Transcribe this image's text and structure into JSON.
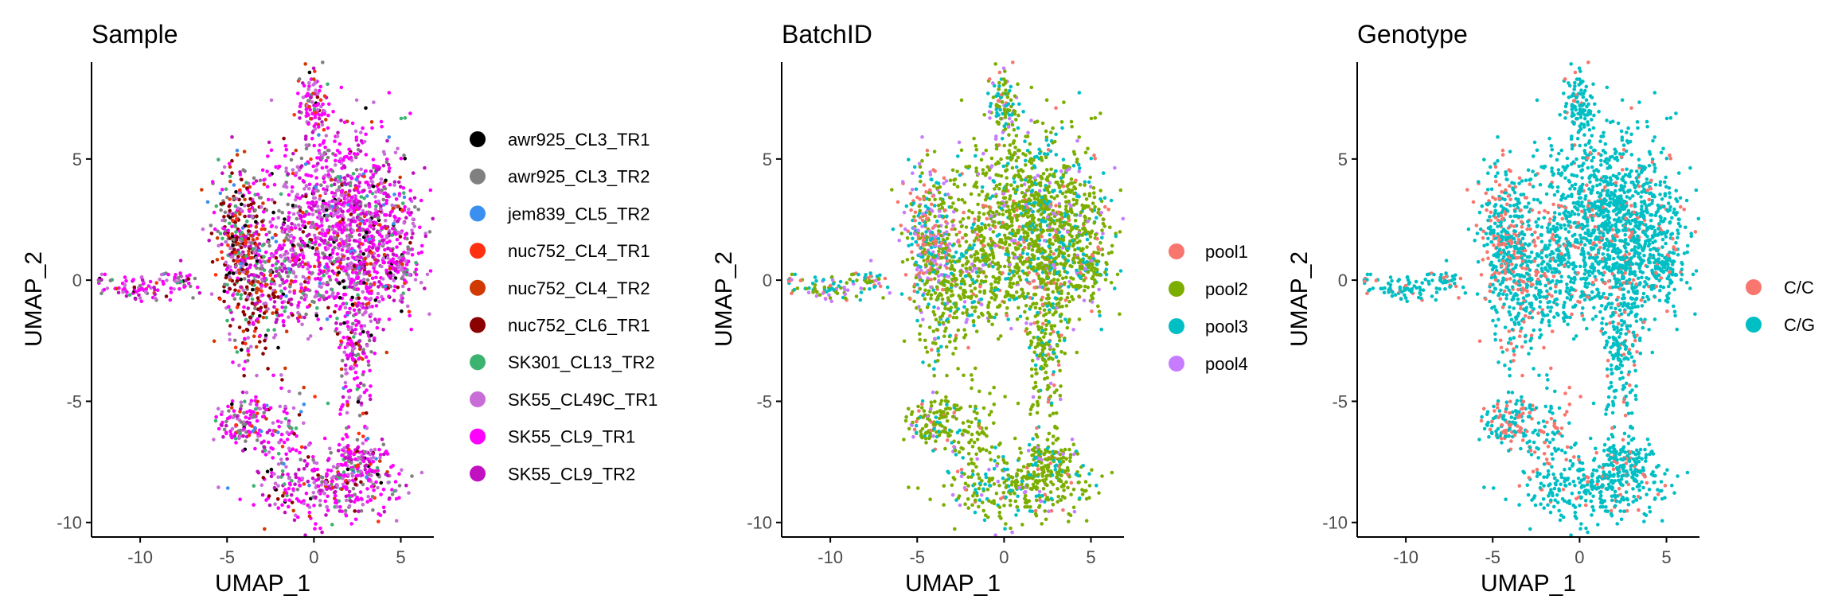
{
  "chart_data": [
    {
      "type": "scatter",
      "title": "Sample",
      "xlabel": "UMAP_1",
      "ylabel": "UMAP_2",
      "xlim": [
        -12.8,
        6.9
      ],
      "ylim": [
        -10.6,
        9.0
      ],
      "xticks": [
        -10,
        -5,
        0,
        5
      ],
      "yticks": [
        -10,
        -5,
        0,
        5
      ],
      "tick_labels": [
        "-10",
        "-5",
        "0",
        "5"
      ],
      "grid": false,
      "legend_position": "right",
      "series": [
        {
          "name": "awr925_CL3_TR1",
          "color": "#000000"
        },
        {
          "name": "awr925_CL3_TR2",
          "color": "#808080"
        },
        {
          "name": "jem839_CL5_TR2",
          "color": "#3A8FEF"
        },
        {
          "name": "nuc752_CL4_TR1",
          "color": "#FF3010"
        },
        {
          "name": "nuc752_CL4_TR2",
          "color": "#D03A00"
        },
        {
          "name": "nuc752_CL6_TR1",
          "color": "#8B0000"
        },
        {
          "name": "SK301_CL13_TR2",
          "color": "#3CB371"
        },
        {
          "name": "SK55_CL49C_TR1",
          "color": "#C86DD7"
        },
        {
          "name": "SK55_CL9_TR1",
          "color": "#FF00FF"
        },
        {
          "name": "SK55_CL9_TR2",
          "color": "#C010C0"
        }
      ]
    },
    {
      "type": "scatter",
      "title": "BatchID",
      "xlabel": "UMAP_1",
      "ylabel": "UMAP_2",
      "xlim": [
        -12.8,
        6.9
      ],
      "ylim": [
        -10.6,
        9.0
      ],
      "xticks": [
        -10,
        -5,
        0,
        5
      ],
      "yticks": [
        -10,
        -5,
        0,
        5
      ],
      "tick_labels": [
        "-10",
        "-5",
        "0",
        "5"
      ],
      "grid": false,
      "legend_position": "right",
      "series": [
        {
          "name": "pool1",
          "color": "#F8766D"
        },
        {
          "name": "pool2",
          "color": "#7CAE00"
        },
        {
          "name": "pool3",
          "color": "#00BFC4"
        },
        {
          "name": "pool4",
          "color": "#C77CFF"
        }
      ]
    },
    {
      "type": "scatter",
      "title": "Genotype",
      "xlabel": "UMAP_1",
      "ylabel": "UMAP_2",
      "xlim": [
        -12.8,
        6.9
      ],
      "ylim": [
        -10.6,
        9.0
      ],
      "xticks": [
        -10,
        -5,
        0,
        5
      ],
      "yticks": [
        -10,
        -5,
        0,
        5
      ],
      "tick_labels": [
        "-10",
        "-5",
        "0",
        "5"
      ],
      "grid": false,
      "legend_position": "right",
      "series": [
        {
          "name": "C/C",
          "color": "#F8766D"
        },
        {
          "name": "C/G",
          "color": "#00BFC4"
        }
      ]
    }
  ]
}
